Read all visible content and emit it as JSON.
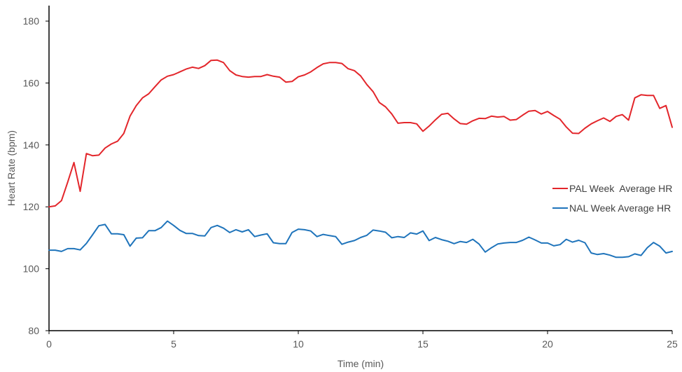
{
  "chart_data": {
    "type": "line",
    "title": "",
    "xlabel": "Time (min)",
    "ylabel": "Heart Rate (bpm)",
    "xlim": [
      0,
      25
    ],
    "ylim": [
      80,
      185
    ],
    "xticks": [
      0,
      5,
      10,
      15,
      20,
      25
    ],
    "yticks": [
      80,
      100,
      120,
      140,
      160,
      180
    ],
    "grid": false,
    "legend": "right",
    "series": [
      {
        "name": "PAL Week  Average HR",
        "color": "#e3262b",
        "x": [
          0,
          0.25,
          0.5,
          0.75,
          1,
          1.25,
          1.5,
          1.75,
          2,
          2.25,
          2.5,
          2.75,
          3,
          3.25,
          3.5,
          3.75,
          4,
          4.25,
          4.5,
          4.75,
          5,
          5.25,
          5.5,
          5.75,
          6,
          6.25,
          6.5,
          6.75,
          7,
          7.25,
          7.5,
          7.75,
          8,
          8.25,
          8.5,
          8.75,
          9,
          9.25,
          9.5,
          9.75,
          10,
          10.25,
          10.5,
          10.75,
          11,
          11.25,
          11.5,
          11.75,
          12,
          12.25,
          12.5,
          12.75,
          13,
          13.25,
          13.5,
          13.75,
          14,
          14.25,
          14.5,
          14.75,
          15,
          15.25,
          15.5,
          15.75,
          16,
          16.25,
          16.5,
          16.75,
          17,
          17.25,
          17.5,
          17.75,
          18,
          18.25,
          18.5,
          18.75,
          19,
          19.25,
          19.5,
          19.75,
          20,
          20.25,
          20.5,
          20.75,
          21,
          21.25,
          21.5,
          21.75,
          22,
          22.25,
          22.5,
          22.75,
          23,
          23.25,
          23.5,
          23.75,
          24,
          24.25,
          24.5,
          24.75,
          25
        ],
        "values": [
          120,
          120.3,
          122,
          128,
          134.3,
          125,
          137.2,
          136.5,
          136.7,
          139,
          140.3,
          141.2,
          143.7,
          149.3,
          152.7,
          155.2,
          156.5,
          158.8,
          161,
          162.2,
          162.7,
          163.6,
          164.5,
          165.1,
          164.7,
          165.6,
          167.3,
          167.4,
          166.6,
          164,
          162.6,
          162.1,
          161.9,
          162.1,
          162.1,
          162.7,
          162.2,
          161.9,
          160.3,
          160.5,
          162,
          162.6,
          163.6,
          165,
          166.2,
          166.6,
          166.6,
          166.3,
          164.6,
          164,
          162.3,
          159.5,
          157.2,
          153.7,
          152.3,
          150,
          147,
          147.2,
          147.2,
          146.8,
          144.4,
          146.1,
          148.1,
          149.9,
          150.2,
          148.4,
          146.9,
          146.7,
          147.8,
          148.6,
          148.5,
          149.3,
          149,
          149.2,
          148,
          148.2,
          149.6,
          150.9,
          151.1,
          150,
          150.8,
          149.5,
          148.3,
          145.8,
          143.8,
          143.7,
          145.4,
          146.8,
          147.8,
          148.7,
          147.6,
          149.2,
          149.8,
          148,
          155.2,
          156.2,
          156,
          156,
          151.8,
          152.7,
          145.7
        ]
      },
      {
        "name": "NAL Week Average HR",
        "color": "#1f74bb",
        "x": [
          0,
          0.25,
          0.5,
          0.75,
          1,
          1.25,
          1.5,
          1.75,
          2,
          2.25,
          2.5,
          2.75,
          3,
          3.25,
          3.5,
          3.75,
          4,
          4.25,
          4.5,
          4.75,
          5,
          5.25,
          5.5,
          5.75,
          6,
          6.25,
          6.5,
          6.75,
          7,
          7.25,
          7.5,
          7.75,
          8,
          8.25,
          8.5,
          8.75,
          9,
          9.25,
          9.5,
          9.75,
          10,
          10.25,
          10.5,
          10.75,
          11,
          11.25,
          11.5,
          11.75,
          12,
          12.25,
          12.5,
          12.75,
          13,
          13.25,
          13.5,
          13.75,
          14,
          14.25,
          14.5,
          14.75,
          15,
          15.25,
          15.5,
          15.75,
          16,
          16.25,
          16.5,
          16.75,
          17,
          17.25,
          17.5,
          17.75,
          18,
          18.25,
          18.5,
          18.75,
          19,
          19.25,
          19.5,
          19.75,
          20,
          20.25,
          20.5,
          20.75,
          21,
          21.25,
          21.5,
          21.75,
          22,
          22.25,
          22.5,
          22.75,
          23,
          23.25,
          23.5,
          23.75,
          24,
          24.25,
          24.5,
          24.75,
          25
        ],
        "values": [
          106,
          106,
          105.6,
          106.5,
          106.5,
          106.1,
          108.2,
          111,
          113.9,
          114.3,
          111.3,
          111.3,
          111,
          107.3,
          109.9,
          110,
          112.3,
          112.3,
          113.3,
          115.4,
          114,
          112.4,
          111.4,
          111.4,
          110.7,
          110.6,
          113.3,
          114,
          113.1,
          111.7,
          112.6,
          111.9,
          112.6,
          110.4,
          110.9,
          111.3,
          108.4,
          108.1,
          108.1,
          111.7,
          112.8,
          112.6,
          112.2,
          110.4,
          111.1,
          110.7,
          110.4,
          107.9,
          108.6,
          109.1,
          110.1,
          110.8,
          112.5,
          112.2,
          111.8,
          110,
          110.4,
          110.1,
          111.6,
          111.2,
          112.2,
          109.1,
          110.1,
          109.4,
          108.9,
          108.1,
          108.8,
          108.5,
          109.5,
          108,
          105.4,
          106.8,
          108,
          108.3,
          108.5,
          108.5,
          109.2,
          110.2,
          109.3,
          108.3,
          108.3,
          107.4,
          107.8,
          109.5,
          108.6,
          109.2,
          108.4,
          105.1,
          104.6,
          104.9,
          104.4,
          103.7,
          103.7,
          103.9,
          104.8,
          104.3,
          106.8,
          108.5,
          107.3,
          105.1,
          105.6
        ]
      }
    ]
  }
}
